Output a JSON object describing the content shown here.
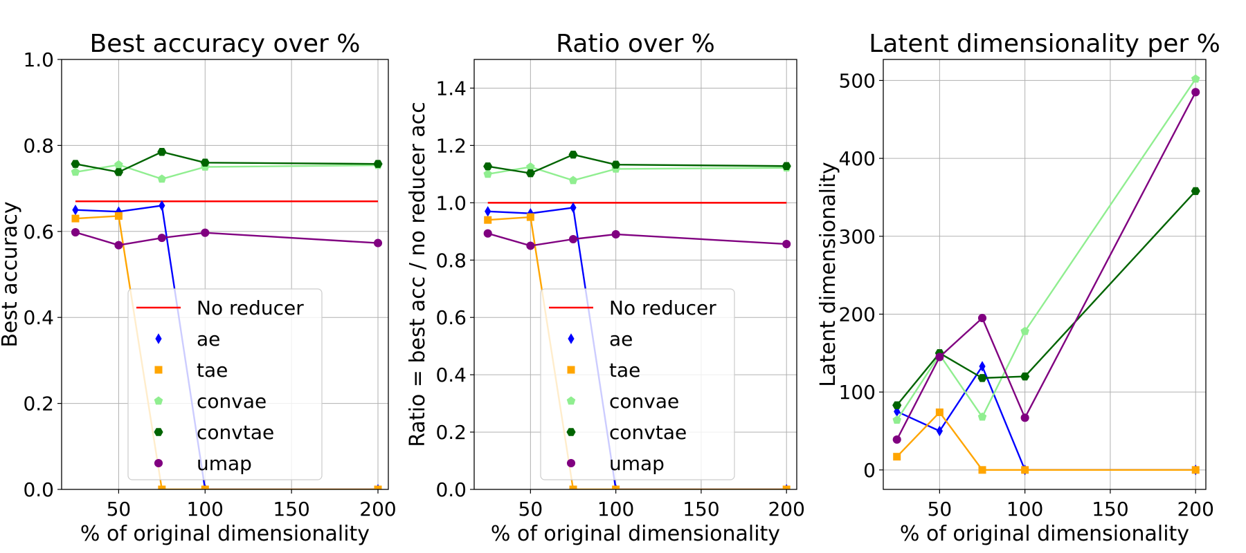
{
  "chart_data": [
    {
      "type": "line",
      "title": "Best accuracy over %",
      "xlabel": "% of original dimensionality",
      "ylabel": "Best accuracy",
      "xlim": [
        17,
        206
      ],
      "ylim": [
        0,
        1.0
      ],
      "xticks": [
        50,
        100,
        150,
        200
      ],
      "yticks": [
        0.0,
        0.2,
        0.4,
        0.6,
        0.8,
        1.0
      ],
      "grid": true,
      "legend_position": "lower-center",
      "x": [
        25,
        50,
        75,
        100,
        200
      ],
      "hline": {
        "name": "No reducer",
        "y": 0.67,
        "x0": 25,
        "x1": 200,
        "color": "#ff0000"
      },
      "series": [
        {
          "name": "ae",
          "marker": "diamond",
          "color": "#0000ff",
          "values": [
            0.65,
            0.646,
            0.66,
            0.0,
            0.0
          ]
        },
        {
          "name": "tae",
          "marker": "square",
          "color": "#ffa500",
          "values": [
            0.63,
            0.636,
            0.0,
            0.0,
            0.0
          ]
        },
        {
          "name": "convae",
          "marker": "pentagon",
          "color": "#90ee90",
          "values": [
            0.738,
            0.755,
            0.722,
            0.75,
            0.754
          ]
        },
        {
          "name": "convtae",
          "marker": "hexagon",
          "color": "#006400",
          "values": [
            0.757,
            0.738,
            0.785,
            0.76,
            0.757
          ]
        },
        {
          "name": "umap",
          "marker": "circle",
          "color": "#800080",
          "values": [
            0.598,
            0.568,
            0.585,
            0.597,
            0.573
          ]
        }
      ]
    },
    {
      "type": "line",
      "title": "Ratio over %",
      "xlabel": "% of original dimensionality",
      "ylabel": "Ratio = best acc / no reducer acc",
      "xlim": [
        17,
        206
      ],
      "ylim": [
        0,
        1.5
      ],
      "xticks": [
        50,
        100,
        150,
        200
      ],
      "yticks": [
        0.0,
        0.2,
        0.4,
        0.6,
        0.8,
        1.0,
        1.2,
        1.4
      ],
      "grid": true,
      "legend_position": "lower-center",
      "x": [
        25,
        50,
        75,
        100,
        200
      ],
      "hline": {
        "name": "No reducer",
        "y": 1.0,
        "x0": 25,
        "x1": 200,
        "color": "#ff0000"
      },
      "series": [
        {
          "name": "ae",
          "marker": "diamond",
          "color": "#0000ff",
          "values": [
            0.97,
            0.963,
            0.983,
            0.0,
            0.0
          ]
        },
        {
          "name": "tae",
          "marker": "square",
          "color": "#ffa500",
          "values": [
            0.94,
            0.95,
            0.0,
            0.0,
            0.0
          ]
        },
        {
          "name": "convae",
          "marker": "pentagon",
          "color": "#90ee90",
          "values": [
            1.1,
            1.125,
            1.078,
            1.118,
            1.122
          ]
        },
        {
          "name": "convtae",
          "marker": "hexagon",
          "color": "#006400",
          "values": [
            1.127,
            1.103,
            1.168,
            1.133,
            1.128
          ]
        },
        {
          "name": "umap",
          "marker": "circle",
          "color": "#800080",
          "values": [
            0.893,
            0.85,
            0.873,
            0.89,
            0.856
          ]
        }
      ]
    },
    {
      "type": "line",
      "title": "Latent dimensionality per %",
      "xlabel": "% of original dimensionality",
      "ylabel": "Latent dimensionality",
      "xlim": [
        17,
        206
      ],
      "ylim": [
        -25,
        527
      ],
      "xticks": [
        50,
        100,
        150,
        200
      ],
      "yticks": [
        0,
        100,
        200,
        300,
        400,
        500
      ],
      "grid": true,
      "legend_position": "none",
      "x": [
        25,
        50,
        75,
        100,
        200
      ],
      "series": [
        {
          "name": "ae",
          "marker": "diamond",
          "color": "#0000ff",
          "values": [
            75,
            50,
            133,
            0,
            0
          ]
        },
        {
          "name": "tae",
          "marker": "square",
          "color": "#ffa500",
          "values": [
            17,
            74,
            0,
            0,
            0
          ]
        },
        {
          "name": "convae",
          "marker": "pentagon",
          "color": "#90ee90",
          "values": [
            64,
            148,
            68,
            178,
            502
          ]
        },
        {
          "name": "convtae",
          "marker": "hexagon",
          "color": "#006400",
          "values": [
            83,
            150,
            118,
            120,
            358
          ]
        },
        {
          "name": "umap",
          "marker": "circle",
          "color": "#800080",
          "values": [
            39,
            145,
            195,
            67,
            485
          ]
        }
      ]
    }
  ]
}
